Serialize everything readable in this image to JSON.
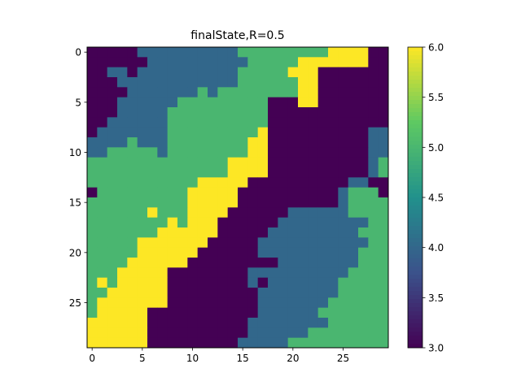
{
  "chart_data": {
    "type": "heatmap",
    "title": "finalState,R=0.5",
    "xlabel": "",
    "ylabel": "",
    "x_ticks": [
      "0",
      "5",
      "10",
      "15",
      "20",
      "25"
    ],
    "y_ticks": [
      "0",
      "5",
      "10",
      "15",
      "20",
      "25"
    ],
    "colorbar_ticks": [
      "3.0",
      "3.5",
      "4.0",
      "4.5",
      "5.0",
      "5.5",
      "6.0"
    ],
    "vmin": 3.0,
    "vmax": 6.0,
    "colormap": "viridis",
    "colormap_stops": [
      "#440154",
      "#3b528b",
      "#21918c",
      "#5ec962",
      "#fde725"
    ],
    "grid": false,
    "shape": [
      30,
      30
    ],
    "data": [
      [
        3,
        3,
        3,
        3,
        3,
        4,
        4,
        4,
        4,
        4,
        4,
        4,
        4,
        4,
        4,
        5,
        5,
        5,
        5,
        5,
        5,
        5,
        5,
        5,
        6,
        6,
        6,
        6,
        3,
        3
      ],
      [
        3,
        3,
        3,
        3,
        3,
        3,
        4,
        4,
        4,
        4,
        4,
        4,
        4,
        4,
        4,
        4,
        5,
        5,
        5,
        5,
        5,
        6,
        6,
        6,
        6,
        6,
        6,
        6,
        3,
        3
      ],
      [
        3,
        3,
        4,
        4,
        3,
        4,
        4,
        4,
        4,
        4,
        4,
        4,
        4,
        4,
        4,
        5,
        5,
        5,
        5,
        5,
        6,
        6,
        6,
        3,
        3,
        3,
        3,
        3,
        3,
        3
      ],
      [
        3,
        3,
        3,
        4,
        4,
        4,
        4,
        4,
        4,
        4,
        4,
        4,
        4,
        4,
        4,
        5,
        5,
        5,
        5,
        5,
        5,
        6,
        6,
        3,
        3,
        3,
        3,
        3,
        3,
        3
      ],
      [
        3,
        3,
        3,
        3,
        4,
        4,
        4,
        4,
        4,
        4,
        4,
        5,
        4,
        5,
        5,
        5,
        5,
        5,
        5,
        5,
        5,
        6,
        6,
        3,
        3,
        3,
        3,
        3,
        3,
        3
      ],
      [
        3,
        3,
        3,
        4,
        4,
        4,
        4,
        4,
        4,
        5,
        5,
        5,
        5,
        5,
        5,
        5,
        5,
        5,
        3,
        3,
        3,
        6,
        6,
        3,
        3,
        3,
        3,
        3,
        3,
        3
      ],
      [
        3,
        3,
        3,
        4,
        4,
        4,
        4,
        4,
        5,
        5,
        5,
        5,
        5,
        5,
        5,
        5,
        5,
        5,
        3,
        3,
        3,
        3,
        3,
        3,
        3,
        3,
        3,
        3,
        3,
        3
      ],
      [
        3,
        3,
        4,
        4,
        4,
        4,
        4,
        4,
        5,
        5,
        5,
        5,
        5,
        5,
        5,
        5,
        5,
        5,
        3,
        3,
        3,
        3,
        3,
        3,
        3,
        3,
        3,
        3,
        3,
        3
      ],
      [
        3,
        4,
        4,
        4,
        4,
        4,
        4,
        4,
        5,
        5,
        5,
        5,
        5,
        5,
        5,
        5,
        5,
        6,
        3,
        3,
        3,
        3,
        3,
        3,
        3,
        3,
        3,
        3,
        4,
        4
      ],
      [
        4,
        4,
        4,
        4,
        5,
        4,
        4,
        4,
        5,
        5,
        5,
        5,
        5,
        5,
        5,
        5,
        6,
        6,
        3,
        3,
        3,
        3,
        3,
        3,
        3,
        3,
        3,
        3,
        4,
        4
      ],
      [
        4,
        4,
        5,
        5,
        5,
        5,
        5,
        4,
        5,
        5,
        5,
        5,
        5,
        5,
        5,
        5,
        6,
        6,
        3,
        3,
        3,
        3,
        3,
        3,
        3,
        3,
        3,
        3,
        4,
        4
      ],
      [
        5,
        5,
        5,
        5,
        5,
        5,
        5,
        5,
        5,
        5,
        5,
        5,
        5,
        5,
        6,
        6,
        6,
        6,
        3,
        3,
        3,
        3,
        3,
        3,
        3,
        3,
        3,
        3,
        4,
        5
      ],
      [
        5,
        5,
        5,
        5,
        5,
        5,
        5,
        5,
        5,
        5,
        5,
        5,
        5,
        5,
        6,
        6,
        6,
        6,
        3,
        3,
        3,
        3,
        3,
        3,
        3,
        3,
        3,
        3,
        4,
        5
      ],
      [
        5,
        5,
        5,
        5,
        5,
        5,
        5,
        5,
        5,
        5,
        5,
        6,
        6,
        6,
        6,
        6,
        3,
        3,
        3,
        3,
        3,
        3,
        3,
        3,
        3,
        3,
        4,
        4,
        3,
        3
      ],
      [
        3,
        5,
        5,
        5,
        5,
        5,
        5,
        5,
        5,
        5,
        6,
        6,
        6,
        6,
        6,
        3,
        3,
        3,
        3,
        3,
        3,
        3,
        3,
        3,
        3,
        4,
        5,
        5,
        5,
        3
      ],
      [
        5,
        5,
        5,
        5,
        5,
        5,
        5,
        5,
        5,
        5,
        6,
        6,
        6,
        6,
        6,
        3,
        3,
        3,
        3,
        3,
        3,
        3,
        3,
        3,
        3,
        4,
        5,
        5,
        5,
        5
      ],
      [
        5,
        5,
        5,
        5,
        5,
        5,
        6,
        5,
        5,
        5,
        6,
        6,
        6,
        6,
        3,
        3,
        3,
        3,
        3,
        3,
        4,
        4,
        4,
        4,
        4,
        4,
        5,
        5,
        5,
        5
      ],
      [
        5,
        5,
        5,
        5,
        5,
        5,
        5,
        5,
        6,
        5,
        6,
        6,
        6,
        3,
        3,
        3,
        3,
        3,
        3,
        4,
        4,
        4,
        4,
        4,
        4,
        4,
        4,
        4,
        5,
        5
      ],
      [
        5,
        5,
        5,
        5,
        5,
        5,
        5,
        6,
        6,
        6,
        6,
        6,
        6,
        3,
        3,
        3,
        3,
        3,
        4,
        4,
        4,
        4,
        4,
        4,
        4,
        4,
        4,
        5,
        5,
        5
      ],
      [
        5,
        5,
        5,
        5,
        5,
        6,
        6,
        6,
        6,
        6,
        6,
        6,
        3,
        3,
        3,
        3,
        3,
        4,
        4,
        4,
        4,
        4,
        4,
        4,
        4,
        4,
        4,
        4,
        5,
        5
      ],
      [
        5,
        5,
        5,
        5,
        5,
        6,
        6,
        6,
        6,
        6,
        6,
        3,
        3,
        3,
        3,
        3,
        3,
        4,
        4,
        4,
        4,
        4,
        4,
        4,
        4,
        4,
        4,
        5,
        5,
        5
      ],
      [
        5,
        5,
        5,
        5,
        6,
        6,
        6,
        6,
        6,
        6,
        3,
        3,
        3,
        3,
        3,
        3,
        3,
        3,
        3,
        4,
        4,
        4,
        4,
        4,
        4,
        4,
        4,
        5,
        5,
        5
      ],
      [
        5,
        5,
        5,
        6,
        6,
        6,
        6,
        6,
        3,
        3,
        3,
        3,
        3,
        3,
        3,
        3,
        4,
        4,
        4,
        4,
        4,
        4,
        4,
        4,
        4,
        4,
        5,
        5,
        5,
        5
      ],
      [
        5,
        6,
        5,
        6,
        6,
        6,
        6,
        6,
        3,
        3,
        3,
        3,
        3,
        3,
        3,
        3,
        4,
        3,
        4,
        4,
        4,
        4,
        4,
        4,
        4,
        5,
        5,
        5,
        5,
        5
      ],
      [
        5,
        5,
        6,
        6,
        6,
        6,
        6,
        6,
        3,
        3,
        3,
        3,
        3,
        3,
        3,
        3,
        3,
        4,
        4,
        4,
        4,
        4,
        4,
        4,
        4,
        5,
        5,
        5,
        5,
        5
      ],
      [
        5,
        6,
        6,
        6,
        6,
        6,
        6,
        6,
        3,
        3,
        3,
        3,
        3,
        3,
        3,
        3,
        3,
        4,
        4,
        4,
        4,
        4,
        4,
        4,
        5,
        5,
        5,
        5,
        5,
        5
      ],
      [
        5,
        6,
        6,
        6,
        6,
        6,
        3,
        3,
        3,
        3,
        3,
        3,
        3,
        3,
        3,
        3,
        3,
        4,
        4,
        4,
        4,
        4,
        4,
        5,
        5,
        5,
        5,
        5,
        5,
        5
      ],
      [
        6,
        6,
        6,
        6,
        6,
        6,
        3,
        3,
        3,
        3,
        3,
        3,
        3,
        3,
        3,
        3,
        4,
        4,
        4,
        4,
        4,
        4,
        4,
        4,
        5,
        5,
        5,
        5,
        5,
        5
      ],
      [
        6,
        6,
        6,
        6,
        6,
        6,
        3,
        3,
        3,
        3,
        3,
        3,
        3,
        3,
        3,
        3,
        4,
        4,
        4,
        4,
        4,
        4,
        5,
        5,
        5,
        5,
        5,
        5,
        5,
        5
      ],
      [
        6,
        6,
        6,
        6,
        6,
        6,
        3,
        3,
        3,
        3,
        3,
        3,
        3,
        3,
        3,
        4,
        4,
        4,
        4,
        4,
        5,
        5,
        5,
        5,
        5,
        5,
        5,
        5,
        5,
        5
      ]
    ]
  }
}
